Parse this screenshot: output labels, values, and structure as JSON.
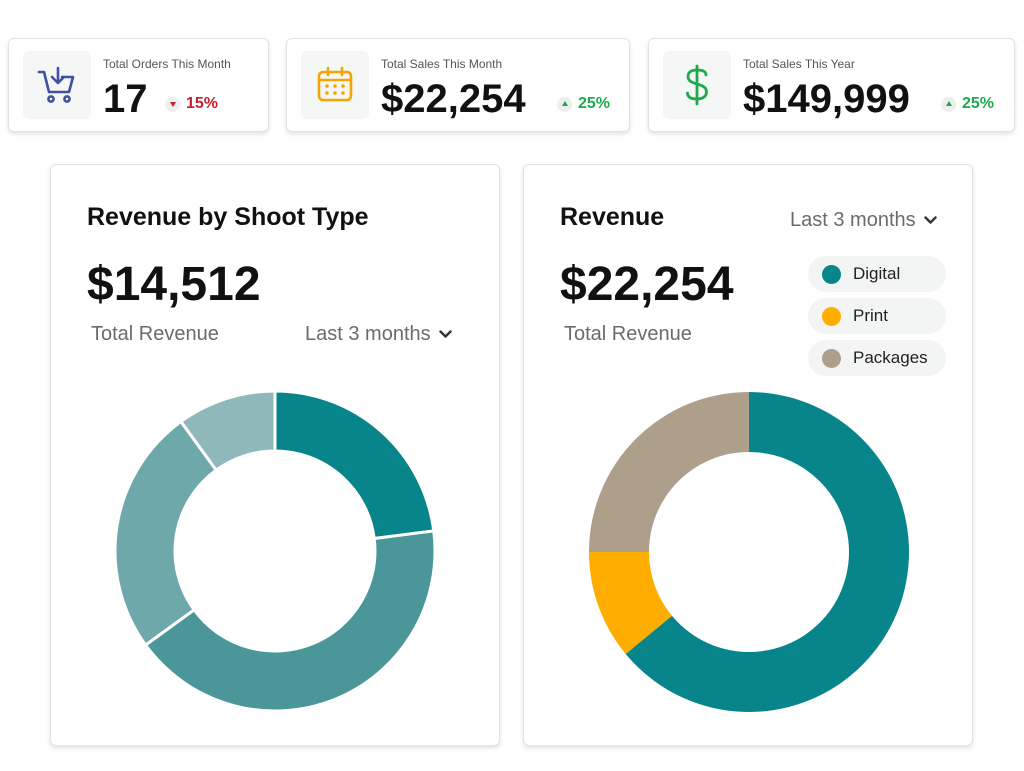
{
  "colors": {
    "teal": "#07858a",
    "amber": "#ffad00",
    "taupe": "#ae9f8b",
    "up": "#1eaa4b",
    "down": "#c8202a"
  },
  "stats": [
    {
      "label": "Total Orders This Month",
      "value": "17",
      "change": "15%",
      "direction": "down",
      "icon": "cart-download-icon"
    },
    {
      "label": "Total Sales This Month",
      "value": "$22,254",
      "change": "25%",
      "direction": "up",
      "icon": "calendar-icon"
    },
    {
      "label": "Total Sales This Year",
      "value": "$149,999",
      "change": "25%",
      "direction": "up",
      "icon": "dollar-icon"
    }
  ],
  "shoot_panel": {
    "title": "Revenue by Shoot Type",
    "amount": "$14,512",
    "subtitle": "Total Revenue",
    "range": "Last 3 months"
  },
  "revenue_panel": {
    "title": "Revenue",
    "amount": "$22,254",
    "subtitle": "Total Revenue",
    "range": "Last 3 months",
    "legend": [
      {
        "label": "Digital",
        "color": "#07858a"
      },
      {
        "label": "Print",
        "color": "#ffad00"
      },
      {
        "label": "Packages",
        "color": "#ae9f8b"
      }
    ]
  },
  "chart_data": [
    {
      "type": "pie",
      "title": "",
      "values": [
        23,
        42,
        25,
        10
      ],
      "colors": [
        "#07858a",
        "#4b9698",
        "#6fa8aa",
        "#8fb8bb"
      ]
    },
    {
      "type": "pie",
      "title": "",
      "categories": [
        "Digital",
        "Print",
        "Packages"
      ],
      "values": [
        64,
        11,
        25
      ],
      "colors": [
        "#07858a",
        "#ffad00",
        "#ae9f8b"
      ]
    }
  ]
}
